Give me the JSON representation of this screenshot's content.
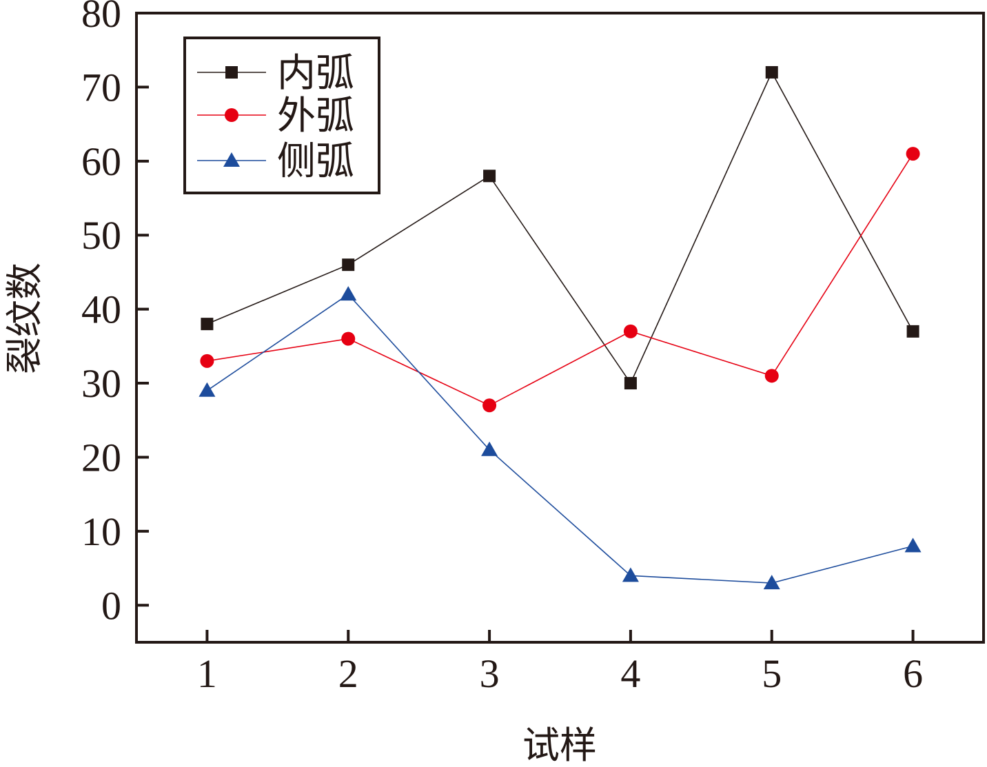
{
  "chart_data": {
    "type": "line",
    "xlabel": "试样",
    "ylabel": "裂纹数",
    "x": [
      1,
      2,
      3,
      4,
      5,
      6
    ],
    "xlim": [
      0.5,
      6.5
    ],
    "ylim": [
      -5,
      80
    ],
    "yticks": [
      0,
      10,
      20,
      30,
      40,
      50,
      60,
      70,
      80
    ],
    "grid": false,
    "legend_position": "top-left",
    "series": [
      {
        "name": "内弧",
        "values": [
          38,
          46,
          58,
          30,
          72,
          37
        ],
        "color": "#231815",
        "marker": "square"
      },
      {
        "name": "外弧",
        "values": [
          33,
          36,
          27,
          37,
          31,
          61
        ],
        "color": "#e60012",
        "marker": "circle"
      },
      {
        "name": "侧弧",
        "values": [
          29,
          42,
          21,
          4,
          3,
          8
        ],
        "color": "#1d4c9c",
        "marker": "triangle"
      }
    ]
  }
}
